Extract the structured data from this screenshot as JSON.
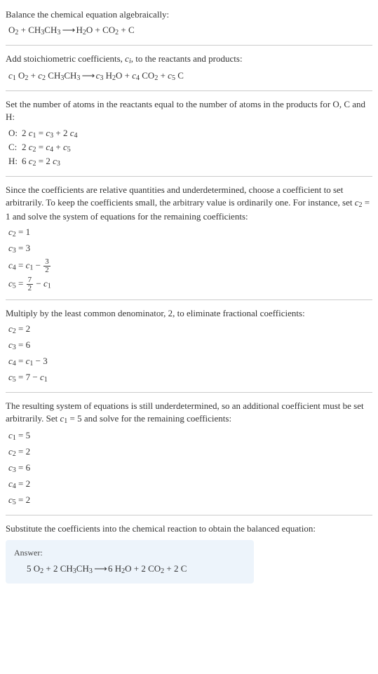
{
  "intro": {
    "line1": "Balance the chemical equation algebraically:",
    "eq_lhs1": "O",
    "eq_lhs1_sub": "2",
    "eq_plus": " + ",
    "eq_lhs2": "CH",
    "eq_lhs2_sub": "3",
    "eq_lhs3": "CH",
    "eq_lhs3_sub": "3",
    "eq_arrow": " ⟶ ",
    "eq_rhs1": "H",
    "eq_rhs1_sub": "2",
    "eq_rhs2": "O + CO",
    "eq_rhs2_sub": "2",
    "eq_rhs3": " + C"
  },
  "stoich": {
    "line1_a": "Add stoichiometric coefficients, ",
    "line1_ci": "c",
    "line1_i": "i",
    "line1_b": ", to the reactants and products:",
    "c1": "c",
    "s1": "1",
    "c2": "c",
    "s2": "2",
    "c3": "c",
    "s3": "3",
    "c4": "c",
    "s4": "4",
    "c5": "c",
    "s5": "5"
  },
  "atoms": {
    "line1": "Set the number of atoms in the reactants equal to the number of atoms in the products for O, C and H:",
    "rowO_l": "O:",
    "rowO_r_a": "2 ",
    "rowO_r_b": " = ",
    "rowO_r_c": " + 2 ",
    "rowC_l": "C:",
    "rowC_r_a": "2 ",
    "rowC_r_b": " = ",
    "rowC_r_c": " + ",
    "rowH_l": "H:",
    "rowH_r_a": "6 ",
    "rowH_r_b": " = 2 "
  },
  "underdet1": {
    "line1": "Since the coefficients are relative quantities and underdetermined, choose a coefficient to set arbitrarily. To keep the coefficients small, the arbitrary value is ordinarily one. For instance, set ",
    "line1_b": " = 1 and solve the system of equations for the remaining coefficients:",
    "e1": " = 1",
    "e2": " = 3",
    "e3_a": " = ",
    "e3_b": " − ",
    "frac3_n": "3",
    "frac3_d": "2",
    "e4_a": " = ",
    "frac7_n": "7",
    "frac7_d": "2",
    "e4_b": " − "
  },
  "mult": {
    "line1": "Multiply by the least common denominator, 2, to eliminate fractional coefficients:",
    "e1": " = 2",
    "e2": " = 6",
    "e3_a": " = ",
    "e3_b": " − 3",
    "e4_a": " = 7 − "
  },
  "underdet2": {
    "line1": "The resulting system of equations is still underdetermined, so an additional coefficient must be set arbitrarily. Set ",
    "line1_b": " = 5 and solve for the remaining coefficients:",
    "e1": " = 5",
    "e2": " = 2",
    "e3": " = 6",
    "e4": " = 2",
    "e5": " = 2"
  },
  "final": {
    "line1": "Substitute the coefficients into the chemical reaction to obtain the balanced equation:",
    "answer_label": "Answer:",
    "ans_a": "5 O",
    "ans_a_sub": "2",
    "ans_b": " + 2 CH",
    "ans_b_sub": "3",
    "ans_c": "CH",
    "ans_c_sub": "3",
    "ans_arrow": " ⟶ ",
    "ans_d": "6 H",
    "ans_d_sub": "2",
    "ans_e": "O + 2 CO",
    "ans_e_sub": "2",
    "ans_f": " + 2 C"
  }
}
